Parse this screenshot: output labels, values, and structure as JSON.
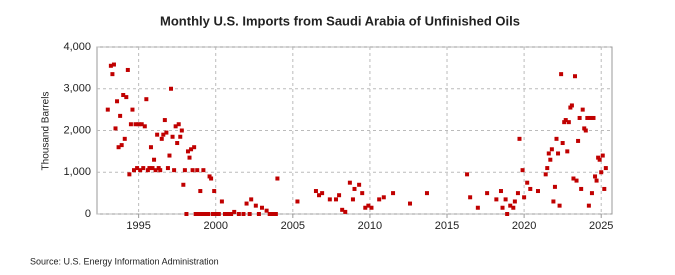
{
  "chart_data": {
    "type": "scatter",
    "title": "Monthly U.S. Imports from Saudi Arabia of Unfinished Oils",
    "y_label": "Thousand Barrels",
    "source": "Source: U.S. Energy Information Administration",
    "color": "#c00000",
    "grid": true,
    "xlim": [
      1992.3,
      2025.7
    ],
    "ylim": [
      0,
      4000
    ],
    "xticks": [
      1995,
      2000,
      2005,
      2010,
      2015,
      2020,
      2025
    ],
    "yticks": [
      0,
      {
        "value": 1000,
        "label": "1,000"
      },
      {
        "value": 2000,
        "label": "2,000"
      },
      {
        "value": 3000,
        "label": "3,000"
      },
      {
        "value": 4000,
        "label": "4,000"
      }
    ],
    "x": [
      1993.0,
      1993.2,
      1993.3,
      1993.4,
      1993.5,
      1993.6,
      1993.7,
      1993.8,
      1993.9,
      1994.0,
      1994.1,
      1994.2,
      1994.3,
      1994.4,
      1994.5,
      1994.6,
      1994.7,
      1994.8,
      1994.9,
      1995.0,
      1995.1,
      1995.2,
      1995.3,
      1995.4,
      1995.5,
      1995.6,
      1995.7,
      1995.8,
      1995.9,
      1996.0,
      1996.1,
      1996.2,
      1996.3,
      1996.4,
      1996.5,
      1996.6,
      1996.7,
      1996.8,
      1996.9,
      1997.0,
      1997.1,
      1997.2,
      1997.3,
      1997.4,
      1997.5,
      1997.6,
      1997.7,
      1997.8,
      1997.9,
      1998.0,
      1998.1,
      1998.2,
      1998.3,
      1998.4,
      1998.5,
      1998.6,
      1998.7,
      1998.8,
      1998.9,
      1999.0,
      1999.1,
      1999.2,
      1999.3,
      1999.5,
      1999.6,
      1999.7,
      1999.8,
      1999.9,
      2000.0,
      2000.2,
      2000.4,
      2000.6,
      2000.8,
      2001.0,
      2001.2,
      2001.5,
      2001.8,
      2002.0,
      2002.2,
      2002.3,
      2002.6,
      2002.8,
      2003.0,
      2003.3,
      2003.5,
      2003.7,
      2003.9,
      2004.0,
      2005.3,
      2006.5,
      2006.7,
      2006.9,
      2007.4,
      2007.8,
      2008.0,
      2008.2,
      2008.4,
      2008.7,
      2008.9,
      2009.0,
      2009.3,
      2009.5,
      2009.7,
      2009.9,
      2010.1,
      2010.6,
      2010.9,
      2011.5,
      2012.6,
      2013.7,
      2016.3,
      2016.5,
      2017.0,
      2017.6,
      2018.2,
      2018.5,
      2018.6,
      2018.8,
      2018.9,
      2019.1,
      2019.3,
      2019.4,
      2019.6,
      2019.7,
      2019.9,
      2020.0,
      2020.2,
      2020.4,
      2020.9,
      2021.4,
      2021.5,
      2021.6,
      2021.7,
      2021.8,
      2021.9,
      2022.0,
      2022.1,
      2022.2,
      2022.3,
      2022.4,
      2022.5,
      2022.6,
      2022.7,
      2022.8,
      2022.9,
      2023.0,
      2023.1,
      2023.2,
      2023.3,
      2023.4,
      2023.5,
      2023.6,
      2023.7,
      2023.8,
      2023.9,
      2024.0,
      2024.1,
      2024.2,
      2024.3,
      2024.4,
      2024.5,
      2024.6,
      2024.7,
      2024.8,
      2024.9,
      2025.0,
      2025.1,
      2025.2,
      2025.3
    ],
    "values": [
      2500,
      3550,
      3350,
      3580,
      2050,
      2700,
      1600,
      2350,
      1650,
      2850,
      1800,
      2800,
      3450,
      950,
      2150,
      2500,
      1050,
      2150,
      1100,
      2150,
      1050,
      2150,
      1100,
      2100,
      2750,
      1050,
      1100,
      1600,
      1100,
      1300,
      1050,
      1900,
      1100,
      1050,
      1800,
      1900,
      2250,
      1950,
      1100,
      1400,
      3000,
      1850,
      1050,
      2100,
      1700,
      2150,
      1850,
      2000,
      700,
      1050,
      0,
      1500,
      1350,
      1550,
      1050,
      1600,
      0,
      1050,
      0,
      550,
      0,
      1050,
      0,
      0,
      900,
      850,
      0,
      550,
      0,
      0,
      300,
      0,
      0,
      0,
      50,
      0,
      0,
      250,
      0,
      350,
      200,
      0,
      150,
      80,
      0,
      0,
      0,
      850,
      300,
      550,
      450,
      500,
      350,
      350,
      450,
      100,
      50,
      750,
      350,
      600,
      700,
      500,
      150,
      200,
      150,
      350,
      400,
      500,
      250,
      500,
      950,
      400,
      150,
      500,
      350,
      550,
      150,
      350,
      0,
      200,
      150,
      300,
      500,
      1800,
      1050,
      400,
      750,
      600,
      550,
      950,
      1100,
      1450,
      1300,
      1550,
      300,
      650,
      1800,
      1450,
      200,
      3350,
      1700,
      2200,
      2250,
      1500,
      2200,
      2550,
      2600,
      850,
      3300,
      800,
      1750,
      2300,
      600,
      2500,
      2050,
      2000,
      2300,
      200,
      2300,
      500,
      2300,
      900,
      800,
      1350,
      1300,
      1000,
      1400,
      600,
      1100
    ]
  }
}
